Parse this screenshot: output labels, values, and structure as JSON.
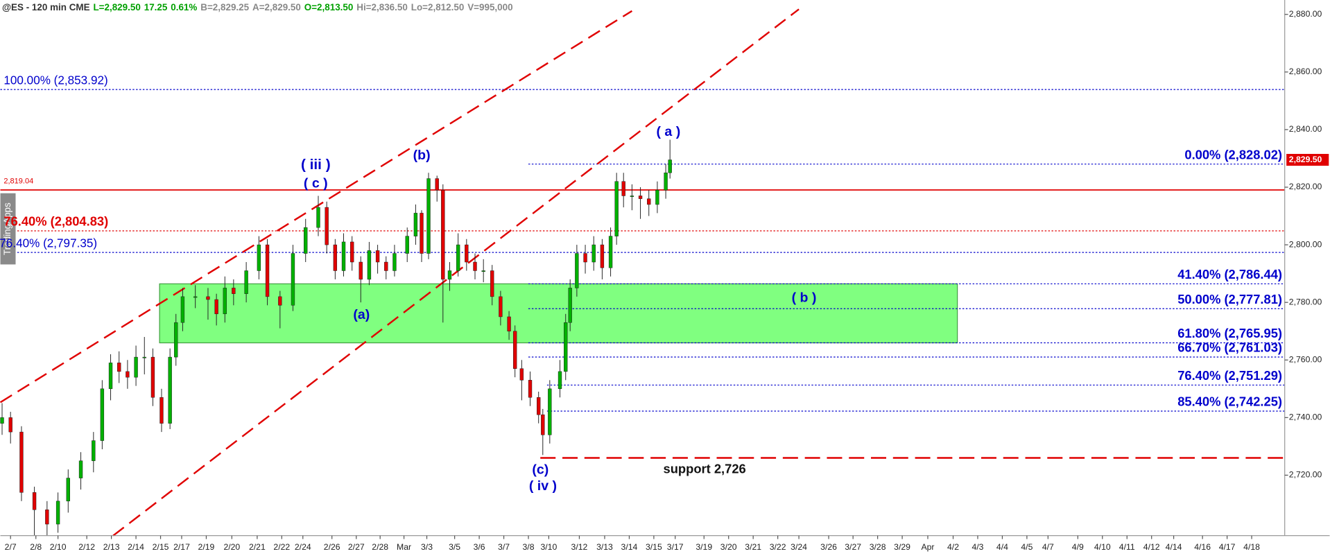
{
  "chart_data": {
    "type": "candlestick",
    "header": [
      {
        "text": "@ES - 120 min CME",
        "color": "#333333"
      },
      {
        "text": "L=2,829.50",
        "color": "#00a000"
      },
      {
        "text": "17.25",
        "color": "#00a000"
      },
      {
        "text": "0.61%",
        "color": "#00a000"
      },
      {
        "text": "B=2,829.25",
        "color": "#888888"
      },
      {
        "text": "A=2,829.50",
        "color": "#888888"
      },
      {
        "text": "O=2,813.50",
        "color": "#00a000"
      },
      {
        "text": "Hi=2,836.50",
        "color": "#888888"
      },
      {
        "text": "Lo=2,812.50",
        "color": "#888888"
      },
      {
        "text": "V=995,000",
        "color": "#888888"
      }
    ],
    "watermark": "TradingApps",
    "up_color": "#00b000",
    "down_color": "#e00000",
    "x": [
      -0.34,
      0,
      0.44,
      0.96,
      1.47,
      1.91,
      2.32,
      2.83,
      3.34,
      3.69,
      4.03,
      4.37,
      4.71,
      5.05,
      5.39,
      5.73,
      6.08,
      6.42,
      6.66,
      6.93,
      7.44,
      7.95,
      8.29,
      8.63,
      8.98,
      9.49,
      10.0,
      10.34,
      10.85,
      11.37,
      11.88,
      12.39,
      12.73,
      13.07,
      13.41,
      13.75,
      14.1,
      14.44,
      14.78,
      15.12,
      15.46,
      15.97,
      16.31,
      16.55,
      16.83,
      17.17,
      17.41,
      17.68,
      18.02,
      18.36,
      18.7,
      19.04,
      19.39,
      19.73,
      20.07,
      20.31,
      20.58,
      20.92,
      21.26,
      21.43,
      21.71,
      22.12,
      22.35,
      22.53,
      22.8,
      23.14,
      23.48,
      23.82,
      24.16,
      24.4,
      24.68,
      25.02,
      25.36,
      25.7,
      26.04,
      26.38,
      26.55
    ],
    "open": [
      2738,
      2740,
      2735,
      2714,
      2708,
      2703,
      2711,
      2719,
      2725,
      2732,
      2750,
      2759,
      2756,
      2754,
      2761,
      2761,
      2747,
      2738,
      2761,
      2773,
      2782,
      2782,
      2781,
      2776,
      2785,
      2783,
      2791,
      2800,
      2782,
      2779,
      2797,
      2806,
      2813,
      2800,
      2791,
      2801,
      2794,
      2788,
      2798,
      2794,
      2791,
      2797,
      2803,
      2811,
      2797,
      2823,
      2819,
      2788,
      2791,
      2800,
      2794,
      2791,
      2791,
      2782,
      2775,
      2770,
      2757,
      2753,
      2747,
      2741,
      2734,
      2750,
      2756,
      2773,
      2785,
      2797,
      2794,
      2800,
      2792,
      2803,
      2822,
      2817,
      2817,
      2816,
      2814,
      2819,
      2825
    ],
    "high": [
      2745,
      2742,
      2737,
      2716,
      2711,
      2714,
      2722,
      2728,
      2735,
      2753,
      2762,
      2763,
      2760,
      2765,
      2768,
      2764,
      2750,
      2764,
      2776,
      2785,
      2786,
      2785,
      2783,
      2789,
      2788,
      2794,
      2803,
      2802,
      2784,
      2800,
      2809,
      2817,
      2815,
      2802,
      2804,
      2803,
      2796,
      2801,
      2800,
      2796,
      2800,
      2806,
      2814,
      2812,
      2825,
      2824,
      2821,
      2794,
      2804,
      2802,
      2797,
      2795,
      2793,
      2784,
      2777,
      2772,
      2760,
      2756,
      2749,
      2743,
      2753,
      2760,
      2776,
      2788,
      2800,
      2800,
      2803,
      2802,
      2806,
      2825,
      2825,
      2821,
      2820,
      2819,
      2822,
      2828,
      2836.5
    ],
    "low": [
      2734,
      2731,
      2711,
      2699,
      2699,
      2700,
      2707,
      2715,
      2721,
      2729,
      2746,
      2752,
      2750,
      2751,
      2755,
      2744,
      2735,
      2736,
      2758,
      2770,
      2778,
      2774,
      2772,
      2773,
      2779,
      2780,
      2788,
      2779,
      2771,
      2777,
      2794,
      2803,
      2797,
      2788,
      2789,
      2791,
      2780,
      2786,
      2790,
      2788,
      2789,
      2794,
      2800,
      2794,
      2795,
      2815,
      2773,
      2784,
      2789,
      2791,
      2788,
      2787,
      2779,
      2772,
      2767,
      2754,
      2746,
      2744,
      2738,
      2727,
      2731,
      2747,
      2753,
      2770,
      2782,
      2790,
      2791,
      2788,
      2789,
      2800,
      2813,
      2812,
      2809,
      2810,
      2811,
      2816,
      2823
    ],
    "close": [
      2740,
      2735,
      2714,
      2708,
      2703,
      2711,
      2719,
      2725,
      2732,
      2750,
      2759,
      2756,
      2754,
      2761,
      2761,
      2747,
      2738,
      2761,
      2773,
      2782,
      2782,
      2781,
      2776,
      2785,
      2783,
      2791,
      2800,
      2782,
      2779,
      2797,
      2806,
      2813,
      2800,
      2791,
      2801,
      2794,
      2788,
      2798,
      2794,
      2791,
      2797,
      2803,
      2811,
      2797,
      2823,
      2819,
      2788,
      2791,
      2800,
      2794,
      2791,
      2791,
      2782,
      2775,
      2770,
      2757,
      2753,
      2747,
      2741,
      2734,
      2750,
      2756,
      2773,
      2785,
      2797,
      2794,
      2800,
      2792,
      2803,
      2822,
      2817,
      2817,
      2816,
      2814,
      2819,
      2825,
      2829.5
    ],
    "xlim": [
      -0.41,
      51.3
    ],
    "ylim": [
      2699,
      2885
    ],
    "xticks": [
      {
        "value": 0,
        "label": "2/7"
      },
      {
        "value": 1.02,
        "label": "2/8"
      },
      {
        "value": 1.91,
        "label": "2/10"
      },
      {
        "value": 3.07,
        "label": "2/12"
      },
      {
        "value": 4.06,
        "label": "2/13"
      },
      {
        "value": 5.05,
        "label": "2/14"
      },
      {
        "value": 6.04,
        "label": "2/15"
      },
      {
        "value": 6.89,
        "label": "2/17"
      },
      {
        "value": 7.88,
        "label": "2/19"
      },
      {
        "value": 8.91,
        "label": "2/20"
      },
      {
        "value": 9.93,
        "label": "2/21"
      },
      {
        "value": 10.92,
        "label": "2/22"
      },
      {
        "value": 11.77,
        "label": "2/24"
      },
      {
        "value": 12.94,
        "label": "2/26"
      },
      {
        "value": 13.92,
        "label": "2/27"
      },
      {
        "value": 14.88,
        "label": "2/28"
      },
      {
        "value": 15.84,
        "label": "Mar"
      },
      {
        "value": 16.76,
        "label": "3/3"
      },
      {
        "value": 17.88,
        "label": "3/5"
      },
      {
        "value": 18.87,
        "label": "3/6"
      },
      {
        "value": 19.86,
        "label": "3/7"
      },
      {
        "value": 20.85,
        "label": "3/8"
      },
      {
        "value": 21.67,
        "label": "3/10"
      },
      {
        "value": 22.9,
        "label": "3/12"
      },
      {
        "value": 23.92,
        "label": "3/13"
      },
      {
        "value": 24.91,
        "label": "3/14"
      },
      {
        "value": 25.9,
        "label": "3/15"
      },
      {
        "value": 26.76,
        "label": "3/17"
      },
      {
        "value": 27.92,
        "label": "3/19"
      },
      {
        "value": 28.91,
        "label": "3/20"
      },
      {
        "value": 29.9,
        "label": "3/21"
      },
      {
        "value": 30.89,
        "label": "3/22"
      },
      {
        "value": 31.74,
        "label": "3/24"
      },
      {
        "value": 32.94,
        "label": "3/26"
      },
      {
        "value": 33.92,
        "label": "3/27"
      },
      {
        "value": 34.91,
        "label": "3/28"
      },
      {
        "value": 35.9,
        "label": "3/29"
      },
      {
        "value": 36.93,
        "label": "Apr"
      },
      {
        "value": 37.95,
        "label": "4/2"
      },
      {
        "value": 38.94,
        "label": "4/3"
      },
      {
        "value": 39.93,
        "label": "4/4"
      },
      {
        "value": 40.92,
        "label": "4/5"
      },
      {
        "value": 41.77,
        "label": "4/7"
      },
      {
        "value": 42.97,
        "label": "4/9"
      },
      {
        "value": 43.96,
        "label": "4/10"
      },
      {
        "value": 44.95,
        "label": "4/11"
      },
      {
        "value": 45.94,
        "label": "4/12"
      },
      {
        "value": 46.83,
        "label": "4/14"
      },
      {
        "value": 47.99,
        "label": "4/16"
      },
      {
        "value": 48.98,
        "label": "4/17"
      },
      {
        "value": 49.97,
        "label": "4/18"
      }
    ],
    "yticks": [
      {
        "value": 2720,
        "label": "2,720.00"
      },
      {
        "value": 2740,
        "label": "2,740.00"
      },
      {
        "value": 2760,
        "label": "2,760.00"
      },
      {
        "value": 2780,
        "label": "2,780.00"
      },
      {
        "value": 2800,
        "label": "2,800.00"
      },
      {
        "value": 2820,
        "label": "2,820.00"
      },
      {
        "value": 2840,
        "label": "2,840.00"
      },
      {
        "value": 2860,
        "label": "2,860.00"
      },
      {
        "value": 2880,
        "label": "2,880.00"
      }
    ],
    "last_price": {
      "value": 2829.5,
      "label": "2,829.50"
    },
    "zone": {
      "x": [
        6.0,
        38.12
      ],
      "y": [
        2765.95,
        2786.44
      ],
      "color": "#80ff80"
    },
    "trendlines": [
      {
        "x": [
          -0.41,
          25.02
        ],
        "y": [
          2745.3,
          2881.2
        ],
        "color": "#e00000"
      },
      {
        "x": [
          4.13,
          31.74
        ],
        "y": [
          2699,
          2881.8
        ],
        "color": "#e00000"
      }
    ],
    "levels": [
      {
        "value": 2853.92,
        "label": "100.00% (2,853.92)",
        "color": "#0000cc",
        "style": "dotted",
        "side": "left",
        "bold": false,
        "x0": -0.41
      },
      {
        "value": 2819.04,
        "label": "2,819.04",
        "color": "#e00000",
        "style": "solid",
        "side": "left",
        "bold": false,
        "x0": -0.41
      },
      {
        "value": 2804.83,
        "label": "76.40% (2,804.83)",
        "color": "#e00000",
        "style": "dotted",
        "side": "left",
        "bold": true,
        "x0": -0.41
      },
      {
        "value": 2797.35,
        "label": "76.40% (2,797.35)",
        "color": "#0000cc",
        "style": "dotted",
        "side": "left",
        "bold": false,
        "x0": -0.41
      },
      {
        "value": 2828.02,
        "label": "0.00% (2,828.02)",
        "color": "#0000cc",
        "style": "dotted",
        "side": "right",
        "bold": true,
        "x0": 20.85
      },
      {
        "value": 2786.44,
        "label": "41.40% (2,786.44)",
        "color": "#0000cc",
        "style": "dotted",
        "side": "right",
        "bold": true,
        "x0": 20.85
      },
      {
        "value": 2777.81,
        "label": "50.00% (2,777.81)",
        "color": "#0000cc",
        "style": "dotted",
        "side": "right",
        "bold": true,
        "x0": 20.85
      },
      {
        "value": 2765.95,
        "label": "61.80% (2,765.95)",
        "color": "#0000cc",
        "style": "dotted",
        "side": "right",
        "bold": true,
        "x0": 20.85
      },
      {
        "value": 2761.03,
        "label": "66.70% (2,761.03)",
        "color": "#0000cc",
        "style": "dotted",
        "side": "right",
        "bold": true,
        "x0": 20.85
      },
      {
        "value": 2751.29,
        "label": "76.40% (2,751.29)",
        "color": "#0000cc",
        "style": "dotted",
        "side": "right",
        "bold": true,
        "x0": 21.6
      },
      {
        "value": 2742.25,
        "label": "85.40% (2,742.25)",
        "color": "#0000cc",
        "style": "dotted",
        "side": "right",
        "bold": true,
        "x0": 21.6
      }
    ],
    "support": {
      "value": 2726,
      "label": "support 2,726",
      "color": "#e00000",
      "x0": 21.33
    },
    "wave_labels": [
      "( iii )",
      "( c )",
      "(b)",
      "(a)",
      "( a )",
      "( b )",
      "(c)",
      "( iv )"
    ]
  }
}
